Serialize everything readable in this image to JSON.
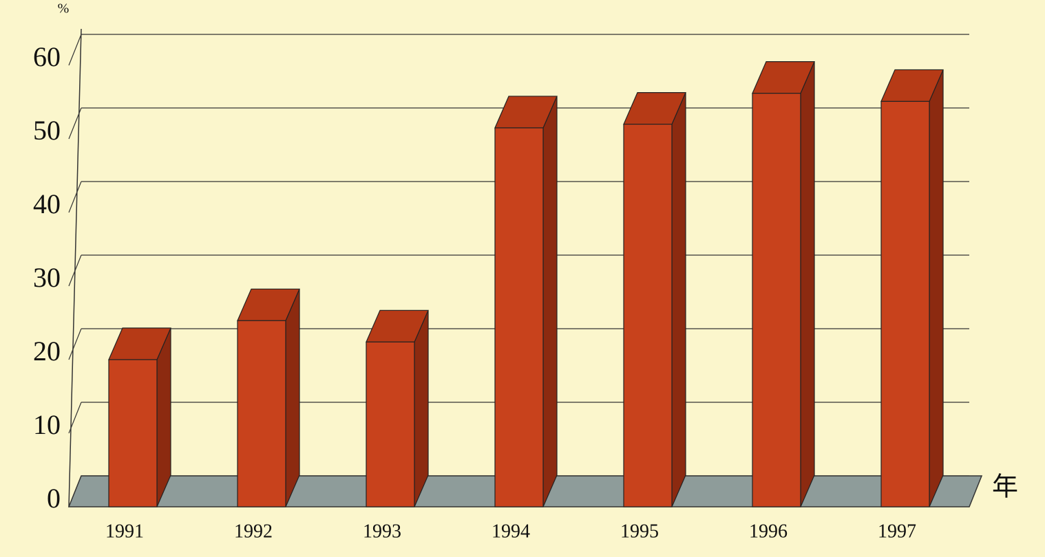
{
  "chart_data": {
    "type": "bar",
    "y_unit": "%",
    "x_unit": "年",
    "categories": [
      "1991",
      "1992",
      "1993",
      "1994",
      "1995",
      "1996",
      "1997"
    ],
    "values": [
      20,
      25.3,
      22.4,
      51.5,
      52,
      56.2,
      55.1
    ],
    "color": "#c8421c",
    "ylim": [
      0,
      60
    ],
    "yticks": [
      0,
      10,
      20,
      30,
      40,
      50,
      60
    ],
    "grid": true
  }
}
